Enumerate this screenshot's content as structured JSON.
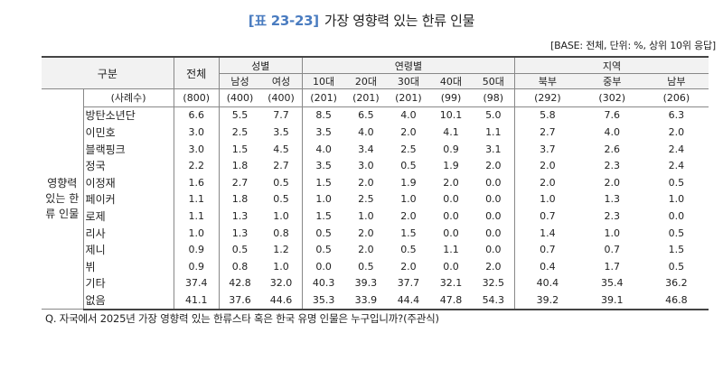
{
  "title": {
    "tag": "[표 23-23]",
    "text": "가장 영향력 있는 한류 인물"
  },
  "base_note": "[BASE: 전체, 단위: %, 상위 10위 응답]",
  "header": {
    "gubun": "구분",
    "total": "전체",
    "gender_group": "성별",
    "age_group": "연령별",
    "region_group": "지역",
    "sub": [
      "남성",
      "여성",
      "10대",
      "20대",
      "30대",
      "40대",
      "50대",
      "북부",
      "중부",
      "남부"
    ]
  },
  "side_label": "영향력 있는 한류 인물",
  "n_row": {
    "label": "(사례수)",
    "values": [
      "(800)",
      "(400)",
      "(400)",
      "(201)",
      "(201)",
      "(201)",
      "(99)",
      "(98)",
      "(292)",
      "(302)",
      "(206)"
    ]
  },
  "rows": [
    {
      "label": "방탄소년단",
      "values": [
        "6.6",
        "5.5",
        "7.7",
        "8.5",
        "6.5",
        "4.0",
        "10.1",
        "5.0",
        "5.8",
        "7.6",
        "6.3"
      ]
    },
    {
      "label": "이민호",
      "values": [
        "3.0",
        "2.5",
        "3.5",
        "3.5",
        "4.0",
        "2.0",
        "4.1",
        "1.1",
        "2.7",
        "4.0",
        "2.0"
      ]
    },
    {
      "label": "블랙핑크",
      "values": [
        "3.0",
        "1.5",
        "4.5",
        "4.0",
        "3.4",
        "2.5",
        "0.9",
        "3.1",
        "3.7",
        "2.6",
        "2.4"
      ]
    },
    {
      "label": "정국",
      "values": [
        "2.2",
        "1.8",
        "2.7",
        "3.5",
        "3.0",
        "0.5",
        "1.9",
        "2.0",
        "2.0",
        "2.3",
        "2.4"
      ]
    },
    {
      "label": "이정재",
      "values": [
        "1.6",
        "2.7",
        "0.5",
        "1.5",
        "2.0",
        "1.9",
        "2.0",
        "0.0",
        "2.0",
        "2.0",
        "0.5"
      ]
    },
    {
      "label": "페이커",
      "values": [
        "1.1",
        "1.8",
        "0.5",
        "1.0",
        "2.5",
        "1.0",
        "0.0",
        "0.0",
        "1.0",
        "1.3",
        "1.0"
      ]
    },
    {
      "label": "로제",
      "values": [
        "1.1",
        "1.3",
        "1.0",
        "1.5",
        "1.0",
        "2.0",
        "0.0",
        "0.0",
        "0.7",
        "2.3",
        "0.0"
      ]
    },
    {
      "label": "리사",
      "values": [
        "1.0",
        "1.3",
        "0.8",
        "0.5",
        "2.0",
        "1.5",
        "0.0",
        "0.0",
        "1.4",
        "1.0",
        "0.5"
      ]
    },
    {
      "label": "제니",
      "values": [
        "0.9",
        "0.5",
        "1.2",
        "0.5",
        "2.0",
        "0.5",
        "1.1",
        "0.0",
        "0.7",
        "0.7",
        "1.5"
      ]
    },
    {
      "label": "뷔",
      "values": [
        "0.9",
        "0.8",
        "1.0",
        "0.0",
        "0.5",
        "2.0",
        "0.0",
        "2.0",
        "0.4",
        "1.7",
        "0.5"
      ]
    },
    {
      "label": "기타",
      "values": [
        "37.4",
        "42.8",
        "32.0",
        "40.3",
        "39.3",
        "37.7",
        "32.1",
        "32.5",
        "40.4",
        "35.4",
        "36.2"
      ]
    },
    {
      "label": "없음",
      "values": [
        "41.1",
        "37.6",
        "44.6",
        "35.3",
        "33.9",
        "44.4",
        "47.8",
        "54.3",
        "39.2",
        "39.1",
        "46.8"
      ]
    }
  ],
  "footnote": "Q. 자국에서 2025년 가장 영향력 있는 한류스타 혹은 한국 유명 인물은 누구입니까?(주관식)",
  "colors": {
    "title_tag": "#4a7cc0",
    "header_bg": "#f2f2f2",
    "rule": "#444444"
  }
}
